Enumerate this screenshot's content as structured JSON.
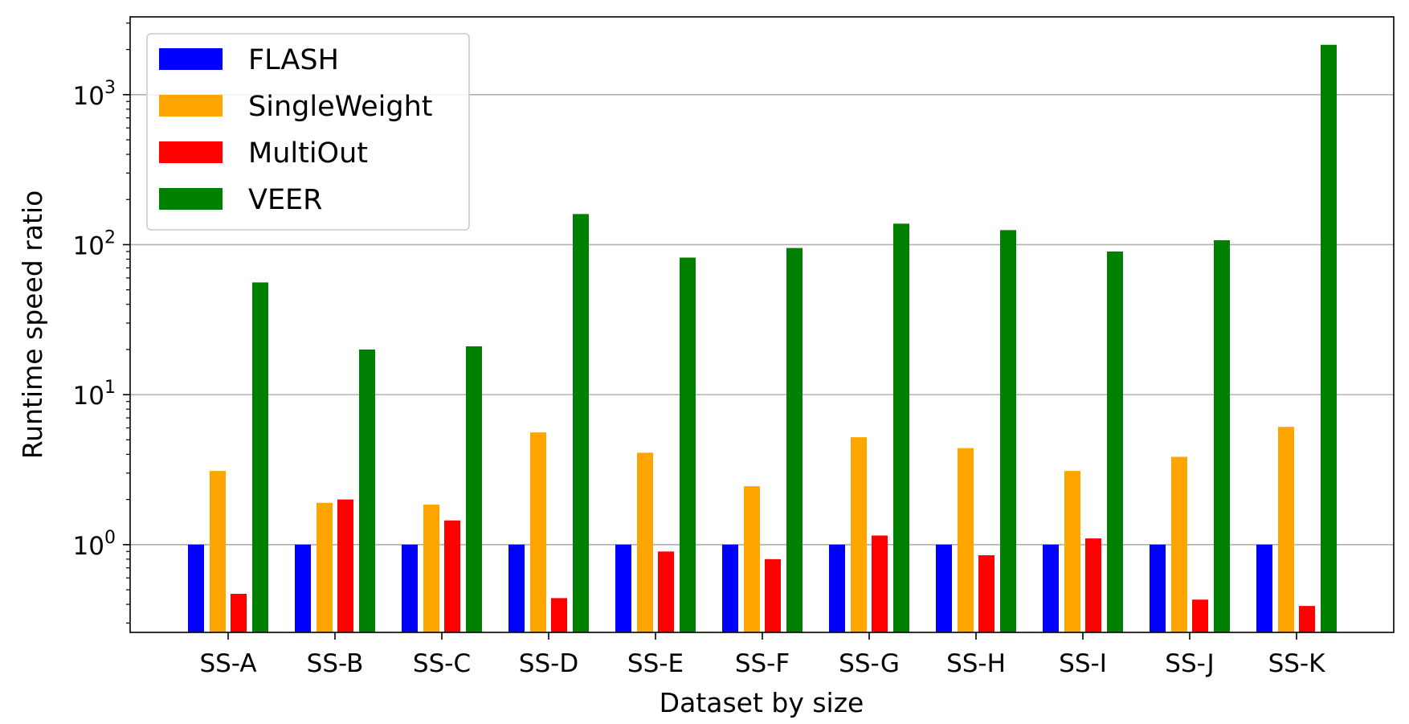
{
  "chart_data": {
    "type": "bar",
    "title": "",
    "xlabel": "Dataset by size",
    "ylabel": "Runtime speed ratio",
    "yscale": "log",
    "ylim": [
      0.26,
      3300
    ],
    "yticks": [
      {
        "value": 1,
        "label": "10",
        "exp": "0"
      },
      {
        "value": 10,
        "label": "10",
        "exp": "1"
      },
      {
        "value": 100,
        "label": "10",
        "exp": "2"
      },
      {
        "value": 1000,
        "label": "10",
        "exp": "3"
      }
    ],
    "grid": "horizontal major",
    "legend_position": "top-left",
    "categories": [
      "SS-A",
      "SS-B",
      "SS-C",
      "SS-D",
      "SS-E",
      "SS-F",
      "SS-G",
      "SS-H",
      "SS-I",
      "SS-J",
      "SS-K"
    ],
    "series": [
      {
        "name": "FLASH",
        "color": "#0000ff",
        "values": [
          1,
          1,
          1,
          1,
          1,
          1,
          1,
          1,
          1,
          1,
          1
        ]
      },
      {
        "name": "SingleWeight",
        "color": "#ffa500",
        "values": [
          3.1,
          1.9,
          1.85,
          5.6,
          4.1,
          2.45,
          5.2,
          4.4,
          3.1,
          3.85,
          6.1
        ]
      },
      {
        "name": "MultiOut",
        "color": "#ff0000",
        "values": [
          0.47,
          2.0,
          1.45,
          0.44,
          0.9,
          0.8,
          1.15,
          0.85,
          1.1,
          0.43,
          0.39
        ]
      },
      {
        "name": "VEER",
        "color": "#008000",
        "values": [
          56,
          20,
          21,
          160,
          82,
          95,
          138,
          125,
          90,
          107,
          2150
        ]
      }
    ]
  }
}
